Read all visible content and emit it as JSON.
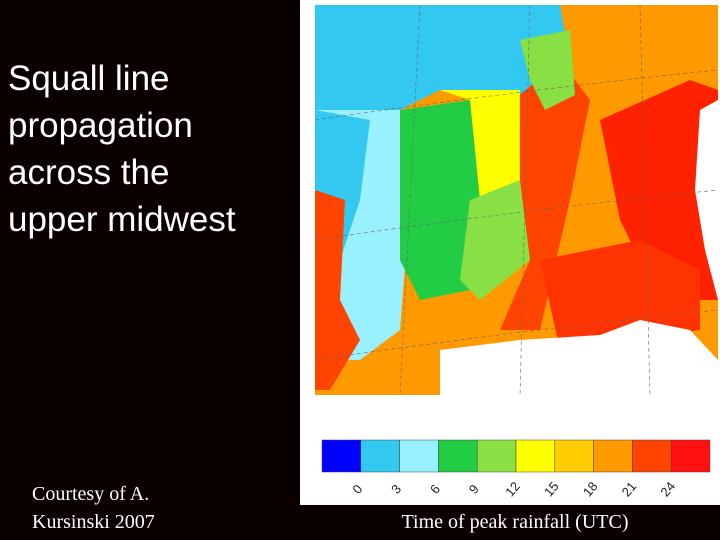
{
  "title_lines": [
    "Squall line",
    "propagation",
    "across the",
    "upper midwest"
  ],
  "credit_lines": [
    "Courtesy of A.",
    "Kursinski 2007"
  ],
  "colorbar": {
    "label": "Time of peak rainfall (UTC)",
    "colors": [
      "#0000ff",
      "#33c8f0",
      "#99f0ff",
      "#22cc44",
      "#88e044",
      "#ffff00",
      "#ffcc00",
      "#ff9900",
      "#ff4400",
      "#ff1111"
    ],
    "ticks": [
      0,
      3,
      6,
      9,
      12,
      15,
      18,
      21,
      24
    ]
  }
}
